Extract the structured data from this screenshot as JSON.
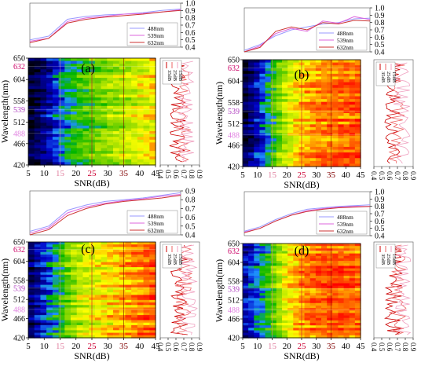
{
  "panels": [
    {
      "label": "(a)",
      "heatmap": {
        "colors": [
          "#000000",
          "#0000c8",
          "#1e90ff",
          "#00b400",
          "#7fd400",
          "#ffff00",
          "#ffa500",
          "#ff4500",
          "#ff0000"
        ],
        "levels": [
          0.0,
          0.25,
          0.35,
          0.42,
          0.55,
          0.72,
          0.8,
          0.9,
          1.0
        ],
        "snr_x": [
          5,
          7,
          9,
          11,
          13,
          15,
          17,
          19,
          21,
          23,
          25,
          27,
          29,
          31,
          33,
          35,
          37,
          39,
          41,
          43,
          45
        ],
        "profile": [
          0.05,
          0.1,
          0.15,
          0.2,
          0.28,
          0.34,
          0.38,
          0.42,
          0.45,
          0.48,
          0.5,
          0.53,
          0.55,
          0.58,
          0.6,
          0.62,
          0.64,
          0.66,
          0.68,
          0.7,
          0.72
        ],
        "rows": 38,
        "y_ticks": [
          "650",
          "604",
          "558",
          "512",
          "466",
          "420"
        ],
        "highlight_ticks": [
          {
            "value": 632,
            "label": "632",
            "color": "#cc0066"
          },
          {
            "value": 539,
            "label": "539",
            "color": "#b040c0"
          },
          {
            "value": 488,
            "label": "488",
            "color": "#e080e0"
          }
        ],
        "x_ticks": [
          5,
          10,
          15,
          20,
          25,
          30,
          35,
          40,
          45
        ],
        "x_tick_labels": [
          "5",
          "10",
          "15",
          "20",
          "25",
          "30",
          "35",
          "40",
          "45"
        ],
        "highlight_x": {
          "15": "#e080a0",
          "25": "#cc0033",
          "35": "#800000"
        },
        "xlabel": "SNR(dB)",
        "ylabel": "Wavelength(nm)"
      },
      "top_line": {
        "x": [
          5,
          10,
          15,
          20,
          25,
          30,
          35,
          40,
          45
        ],
        "yticks": [
          "1.0",
          "0.9",
          "0.8",
          "0.7",
          "0.6",
          "0.5",
          "0.4"
        ],
        "series": [
          {
            "name": "488nm",
            "color": "#9999ff",
            "values": [
              0.5,
              0.55,
              0.78,
              0.82,
              0.84,
              0.85,
              0.87,
              0.9,
              0.92
            ]
          },
          {
            "name": "539nm",
            "color": "#dd66dd",
            "values": [
              0.48,
              0.52,
              0.75,
              0.8,
              0.82,
              0.85,
              0.86,
              0.88,
              0.91
            ]
          },
          {
            "name": "632nm",
            "color": "#cc3333",
            "values": [
              0.46,
              0.52,
              0.73,
              0.78,
              0.81,
              0.83,
              0.85,
              0.88,
              0.9
            ]
          }
        ]
      },
      "side_line": {
        "xticks": [
          "0.4",
          "0.5",
          "0.6",
          "0.7",
          "0.8",
          "0.9"
        ],
        "legend": [
          "35dB",
          "25dB",
          "15dB"
        ],
        "colors": [
          "#cc0000",
          "#ee6666",
          "#f0a0c0"
        ]
      }
    },
    {
      "label": "(b)",
      "heatmap": {
        "colors": [
          "#000000",
          "#0000c8",
          "#1e90ff",
          "#00b400",
          "#7fd400",
          "#ffff00",
          "#ffa500",
          "#ff4500",
          "#ff0000"
        ],
        "levels": [
          0.0,
          0.25,
          0.35,
          0.42,
          0.55,
          0.72,
          0.8,
          0.9,
          1.0
        ],
        "snr_x": [
          5,
          7,
          9,
          11,
          13,
          15,
          17,
          19,
          21,
          23,
          25,
          27,
          29,
          31,
          33,
          35,
          37,
          39,
          41,
          43,
          45
        ],
        "profile": [
          0.08,
          0.15,
          0.22,
          0.3,
          0.38,
          0.46,
          0.55,
          0.62,
          0.68,
          0.72,
          0.76,
          0.79,
          0.81,
          0.83,
          0.84,
          0.85,
          0.86,
          0.87,
          0.87,
          0.88,
          0.88
        ],
        "rows": 38,
        "y_ticks": [
          "650",
          "604",
          "558",
          "512",
          "466",
          "420"
        ],
        "highlight_ticks": [
          {
            "value": 632,
            "label": "632",
            "color": "#cc0066"
          },
          {
            "value": 539,
            "label": "539",
            "color": "#b040c0"
          },
          {
            "value": 488,
            "label": "488",
            "color": "#e080e0"
          }
        ],
        "x_ticks": [
          5,
          10,
          15,
          20,
          25,
          30,
          35,
          40,
          45
        ],
        "x_tick_labels": [
          "5",
          "10",
          "15",
          "20",
          "25",
          "30",
          "35",
          "40",
          "45"
        ],
        "highlight_x": {
          "15": "#e080a0",
          "25": "#cc0033",
          "35": "#800000"
        },
        "xlabel": "SNR(dB)",
        "ylabel": "Wavelength(nm)"
      },
      "top_line": {
        "x": [
          5,
          10,
          15,
          20,
          25,
          30,
          35,
          40,
          45
        ],
        "yticks": [
          "1.0",
          "0.9",
          "0.8",
          "0.7",
          "0.6",
          "0.5",
          "0.4"
        ],
        "series": [
          {
            "name": "488nm",
            "color": "#9999ff",
            "values": [
              0.42,
              0.5,
              0.62,
              0.7,
              0.74,
              0.78,
              0.8,
              0.85,
              0.86
            ]
          },
          {
            "name": "539nm",
            "color": "#dd66dd",
            "values": [
              0.4,
              0.48,
              0.65,
              0.72,
              0.68,
              0.82,
              0.79,
              0.88,
              0.84
            ]
          },
          {
            "name": "632nm",
            "color": "#cc3333",
            "values": [
              0.4,
              0.46,
              0.68,
              0.74,
              0.7,
              0.8,
              0.78,
              0.83,
              0.82
            ]
          }
        ]
      },
      "side_line": {
        "xticks": [
          "0.4",
          "0.5",
          "0.6",
          "0.7",
          "0.8",
          "0.9"
        ],
        "legend": [
          "35dB",
          "25dB",
          "15dB"
        ],
        "colors": [
          "#cc0000",
          "#ee6666",
          "#f0a0c0"
        ]
      }
    },
    {
      "label": "(c)",
      "heatmap": {
        "colors": [
          "#000000",
          "#0000c8",
          "#1e90ff",
          "#00b400",
          "#7fd400",
          "#ffff00",
          "#ffa500",
          "#ff4500",
          "#ff0000"
        ],
        "levels": [
          0.0,
          0.25,
          0.35,
          0.42,
          0.55,
          0.72,
          0.8,
          0.9,
          1.0
        ],
        "snr_x": [
          5,
          7,
          9,
          11,
          13,
          15,
          17,
          19,
          21,
          23,
          25,
          27,
          29,
          31,
          33,
          35,
          37,
          39,
          41,
          43,
          45
        ],
        "profile": [
          0.12,
          0.2,
          0.26,
          0.32,
          0.38,
          0.44,
          0.52,
          0.58,
          0.62,
          0.66,
          0.68,
          0.7,
          0.72,
          0.74,
          0.76,
          0.78,
          0.8,
          0.82,
          0.84,
          0.86,
          0.88
        ],
        "rows": 38,
        "y_ticks": [
          "650",
          "604",
          "558",
          "512",
          "466",
          "420"
        ],
        "highlight_ticks": [
          {
            "value": 632,
            "label": "632",
            "color": "#cc0066"
          },
          {
            "value": 539,
            "label": "539",
            "color": "#b040c0"
          },
          {
            "value": 488,
            "label": "488",
            "color": "#e080e0"
          }
        ],
        "x_ticks": [
          5,
          10,
          15,
          20,
          25,
          30,
          35,
          40,
          45
        ],
        "x_tick_labels": [
          "5",
          "10",
          "15",
          "20",
          "25",
          "30",
          "35",
          "40",
          "45"
        ],
        "highlight_x": {
          "15": "#e080a0",
          "25": "#cc0033",
          "35": "#800000"
        },
        "xlabel": "SNR(dB)",
        "ylabel": "Wavelength(nm)"
      },
      "top_line": {
        "x": [
          5,
          10,
          15,
          20,
          25,
          30,
          35,
          40,
          45
        ],
        "yticks": [
          "0.9",
          "0.8",
          "0.7",
          "0.6",
          "0.5",
          "0.4"
        ],
        "series": [
          {
            "name": "488nm",
            "color": "#9999ff",
            "values": [
              0.44,
              0.5,
              0.68,
              0.74,
              0.78,
              0.8,
              0.82,
              0.85,
              0.88
            ]
          },
          {
            "name": "539nm",
            "color": "#dd66dd",
            "values": [
              0.42,
              0.48,
              0.65,
              0.72,
              0.76,
              0.79,
              0.81,
              0.84,
              0.86
            ]
          },
          {
            "name": "632nm",
            "color": "#cc3333",
            "values": [
              0.4,
              0.46,
              0.62,
              0.7,
              0.75,
              0.78,
              0.8,
              0.82,
              0.85
            ]
          }
        ]
      },
      "side_line": {
        "xticks": [
          "0.4",
          "0.5",
          "0.6",
          "0.7",
          "0.8",
          "0.9"
        ],
        "legend": [
          "35dB",
          "25dB",
          "15dB"
        ],
        "colors": [
          "#cc0000",
          "#ee6666",
          "#f0a0c0"
        ]
      }
    },
    {
      "label": "(d)",
      "heatmap": {
        "colors": [
          "#000000",
          "#0000c8",
          "#1e90ff",
          "#00b400",
          "#7fd400",
          "#ffff00",
          "#ffa500",
          "#ff4500",
          "#ff0000"
        ],
        "levels": [
          0.0,
          0.25,
          0.35,
          0.42,
          0.55,
          0.72,
          0.8,
          0.9,
          1.0
        ],
        "snr_x": [
          5,
          7,
          9,
          11,
          13,
          15,
          17,
          19,
          21,
          23,
          25,
          27,
          29,
          31,
          33,
          35,
          37,
          39,
          41,
          43,
          45
        ],
        "profile": [
          0.22,
          0.28,
          0.33,
          0.38,
          0.44,
          0.52,
          0.6,
          0.68,
          0.74,
          0.78,
          0.82,
          0.85,
          0.87,
          0.88,
          0.89,
          0.9,
          0.9,
          0.9,
          0.89,
          0.88,
          0.87
        ],
        "rows": 38,
        "y_ticks": [
          "650",
          "604",
          "558",
          "512",
          "466",
          "420"
        ],
        "highlight_ticks": [
          {
            "value": 632,
            "label": "632",
            "color": "#cc0066"
          },
          {
            "value": 539,
            "label": "539",
            "color": "#b040c0"
          },
          {
            "value": 488,
            "label": "488",
            "color": "#e080e0"
          }
        ],
        "x_ticks": [
          5,
          10,
          15,
          20,
          25,
          30,
          35,
          40,
          45
        ],
        "x_tick_labels": [
          "5",
          "10",
          "15",
          "20",
          "25",
          "30",
          "35",
          "40",
          "45"
        ],
        "highlight_x": {
          "15": "#e080a0",
          "25": "#cc0033",
          "35": "#800000"
        },
        "xlabel": "SNR(dB)",
        "ylabel": "Wavelength(nm)"
      },
      "top_line": {
        "x": [
          5,
          10,
          15,
          20,
          25,
          30,
          35,
          40,
          45
        ],
        "yticks": [
          "1.0",
          "0.9",
          "0.8",
          "0.7",
          "0.6",
          "0.5",
          "0.4"
        ],
        "series": [
          {
            "name": "488nm",
            "color": "#9999ff",
            "values": [
              0.46,
              0.52,
              0.62,
              0.7,
              0.76,
              0.78,
              0.8,
              0.81,
              0.82
            ]
          },
          {
            "name": "539nm",
            "color": "#dd66dd",
            "values": [
              0.45,
              0.5,
              0.6,
              0.68,
              0.74,
              0.77,
              0.79,
              0.8,
              0.8
            ]
          },
          {
            "name": "632nm",
            "color": "#cc3333",
            "values": [
              0.44,
              0.5,
              0.6,
              0.68,
              0.73,
              0.76,
              0.78,
              0.79,
              0.8
            ]
          }
        ]
      },
      "side_line": {
        "xticks": [
          "0.4",
          "0.5",
          "0.6",
          "0.7",
          "0.8",
          "0.9"
        ],
        "legend": [
          "35dB",
          "25dB",
          "15dB"
        ],
        "colors": [
          "#cc0000",
          "#ee6666",
          "#f0a0c0"
        ]
      }
    }
  ],
  "chart_data": [
    {
      "type": "line",
      "panel": "(a) top",
      "x": [
        5,
        10,
        15,
        20,
        25,
        30,
        35,
        40,
        45
      ],
      "series": [
        {
          "name": "488nm",
          "values": [
            0.5,
            0.55,
            0.78,
            0.82,
            0.84,
            0.85,
            0.87,
            0.9,
            0.92
          ]
        },
        {
          "name": "539nm",
          "values": [
            0.48,
            0.52,
            0.75,
            0.8,
            0.82,
            0.85,
            0.86,
            0.88,
            0.91
          ]
        },
        {
          "name": "632nm",
          "values": [
            0.46,
            0.52,
            0.73,
            0.78,
            0.81,
            0.83,
            0.85,
            0.88,
            0.9
          ]
        }
      ],
      "ylim": [
        0.4,
        1.0
      ]
    },
    {
      "type": "heatmap",
      "panel": "(a)",
      "xlabel": "SNR(dB)",
      "ylabel": "Wavelength(nm)",
      "xlim": [
        5,
        45
      ],
      "ylim": [
        420,
        650
      ]
    },
    {
      "type": "line",
      "panel": "(b) top",
      "x": [
        5,
        10,
        15,
        20,
        25,
        30,
        35,
        40,
        45
      ],
      "series": [
        {
          "name": "488nm",
          "values": [
            0.42,
            0.5,
            0.62,
            0.7,
            0.74,
            0.78,
            0.8,
            0.85,
            0.86
          ]
        },
        {
          "name": "539nm",
          "values": [
            0.4,
            0.48,
            0.65,
            0.72,
            0.68,
            0.82,
            0.79,
            0.88,
            0.84
          ]
        },
        {
          "name": "632nm",
          "values": [
            0.4,
            0.46,
            0.68,
            0.74,
            0.7,
            0.8,
            0.78,
            0.83,
            0.82
          ]
        }
      ],
      "ylim": [
        0.4,
        1.0
      ]
    },
    {
      "type": "heatmap",
      "panel": "(b)",
      "xlabel": "SNR(dB)",
      "ylabel": "Wavelength(nm)",
      "xlim": [
        5,
        45
      ],
      "ylim": [
        420,
        650
      ]
    },
    {
      "type": "line",
      "panel": "(c) top",
      "x": [
        5,
        10,
        15,
        20,
        25,
        30,
        35,
        40,
        45
      ],
      "series": [
        {
          "name": "488nm",
          "values": [
            0.44,
            0.5,
            0.68,
            0.74,
            0.78,
            0.8,
            0.82,
            0.85,
            0.88
          ]
        },
        {
          "name": "539nm",
          "values": [
            0.42,
            0.48,
            0.65,
            0.72,
            0.76,
            0.79,
            0.81,
            0.84,
            0.86
          ]
        },
        {
          "name": "632nm",
          "values": [
            0.4,
            0.46,
            0.62,
            0.7,
            0.75,
            0.78,
            0.8,
            0.82,
            0.85
          ]
        }
      ],
      "ylim": [
        0.4,
        0.9
      ]
    },
    {
      "type": "heatmap",
      "panel": "(c)",
      "xlabel": "SNR(dB)",
      "ylabel": "Wavelength(nm)",
      "xlim": [
        5,
        45
      ],
      "ylim": [
        420,
        650
      ]
    },
    {
      "type": "line",
      "panel": "(d) top",
      "x": [
        5,
        10,
        15,
        20,
        25,
        30,
        35,
        40,
        45
      ],
      "series": [
        {
          "name": "488nm",
          "values": [
            0.46,
            0.52,
            0.62,
            0.7,
            0.76,
            0.78,
            0.8,
            0.81,
            0.82
          ]
        },
        {
          "name": "539nm",
          "values": [
            0.45,
            0.5,
            0.6,
            0.68,
            0.74,
            0.77,
            0.79,
            0.8,
            0.8
          ]
        },
        {
          "name": "632nm",
          "values": [
            0.44,
            0.5,
            0.6,
            0.68,
            0.73,
            0.76,
            0.78,
            0.79,
            0.8
          ]
        }
      ],
      "ylim": [
        0.4,
        1.0
      ]
    },
    {
      "type": "heatmap",
      "panel": "(d)",
      "xlabel": "SNR(dB)",
      "ylabel": "Wavelength(nm)",
      "xlim": [
        5,
        45
      ],
      "ylim": [
        420,
        650
      ]
    }
  ]
}
